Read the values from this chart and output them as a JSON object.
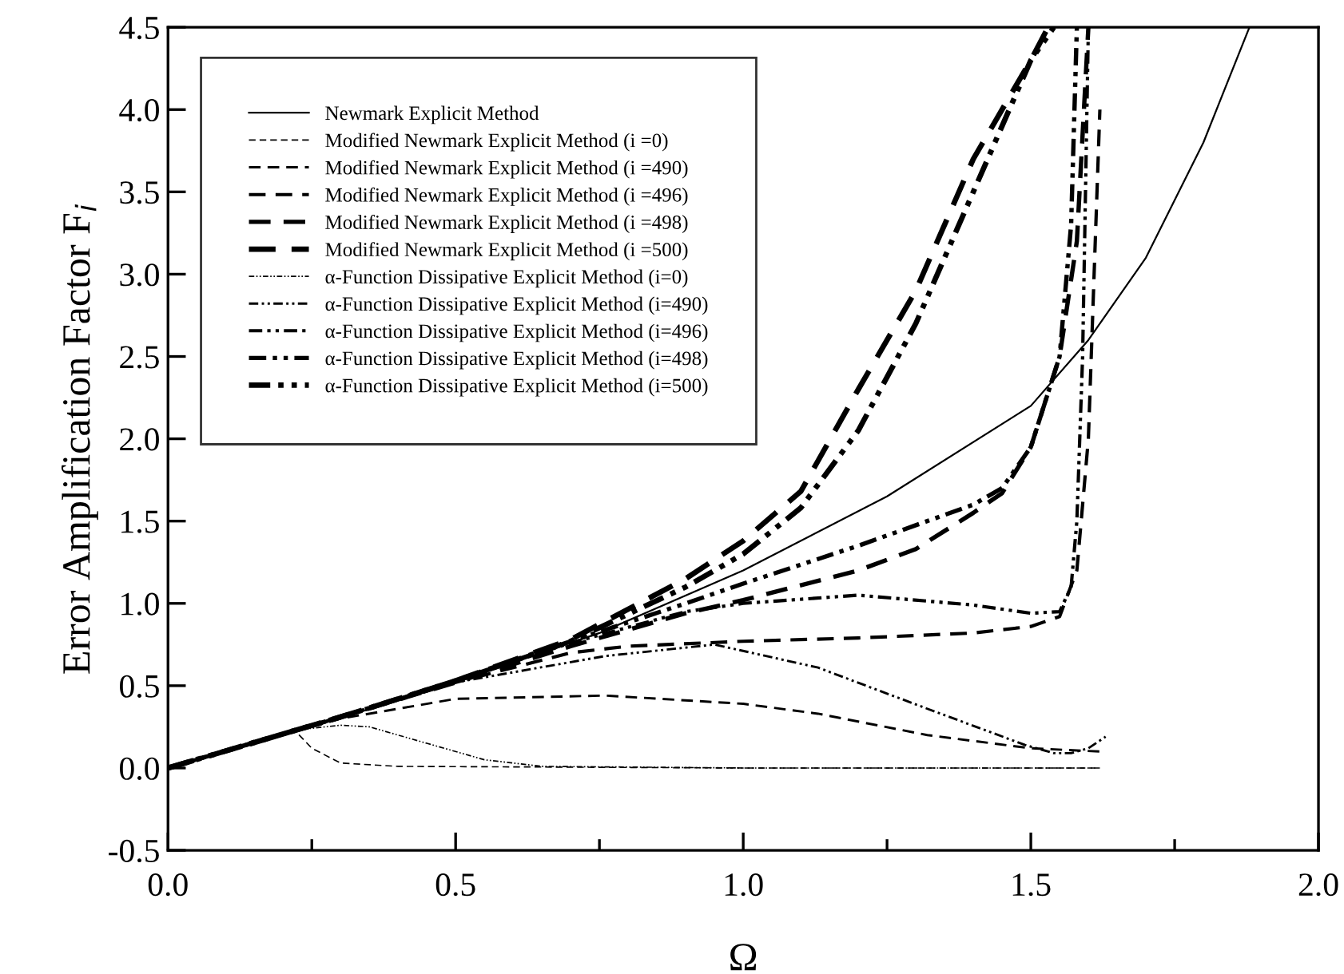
{
  "chart_data": {
    "type": "line",
    "xlabel": "Ω",
    "ylabel": "Error Amplification Factor F$_{i}$",
    "xlim": [
      0,
      2.0
    ],
    "ylim": [
      -0.5,
      4.5
    ],
    "xticks": [
      {
        "value": 0,
        "label": "0.0"
      },
      {
        "value": 0.25,
        "label": null
      },
      {
        "value": 0.5,
        "label": "0.5"
      },
      {
        "value": 0.75,
        "label": null
      },
      {
        "value": 1.0,
        "label": "1.0"
      },
      {
        "value": 1.25,
        "label": null
      },
      {
        "value": 1.5,
        "label": "1.5"
      },
      {
        "value": 1.75,
        "label": null
      },
      {
        "value": 2.0,
        "label": "2.0"
      }
    ],
    "yticks": [
      {
        "value": -0.5,
        "label": "-0.5"
      },
      {
        "value": 0,
        "label": "0.0"
      },
      {
        "value": 0.5,
        "label": "0.5"
      },
      {
        "value": 1.0,
        "label": "1.0"
      },
      {
        "value": 1.5,
        "label": "1.5"
      },
      {
        "value": 2.0,
        "label": "2.0"
      },
      {
        "value": 2.5,
        "label": "2.5"
      },
      {
        "value": 3.0,
        "label": "3.0"
      },
      {
        "value": 3.5,
        "label": "3.5"
      },
      {
        "value": 4.0,
        "label": "4.0"
      },
      {
        "value": 4.5,
        "label": "4.5"
      }
    ],
    "grid": false,
    "legend": "top left",
    "marker": "none",
    "series": [
      {
        "name": "Newmark Explicit Method",
        "color": "#000000",
        "line_style": "solid",
        "x": [
          0,
          0.25,
          0.5,
          0.75,
          1.0,
          1.25,
          1.5,
          1.6,
          1.7,
          1.8,
          1.88
        ],
        "values": [
          0,
          0.25,
          0.52,
          0.82,
          1.2,
          1.65,
          2.2,
          2.6,
          3.1,
          3.8,
          4.5
        ]
      },
      {
        "name": "Modified Newmark Explicit Method (i =0)",
        "color": "#000000",
        "line_style": "dashed",
        "x": [
          0,
          0.22,
          0.25,
          0.3,
          0.4,
          1.0,
          1.62
        ],
        "values": [
          0,
          0.23,
          0.12,
          0.03,
          0.01,
          0,
          0
        ]
      },
      {
        "name": "Modified Newmark Explicit Method (i =490)",
        "color": "#000000",
        "line_style": "dashed",
        "x": [
          0,
          0.3,
          0.5,
          0.76,
          1.0,
          1.13,
          1.32,
          1.5,
          1.62
        ],
        "values": [
          0,
          0.3,
          0.42,
          0.44,
          0.39,
          0.33,
          0.2,
          0.12,
          0.1
        ]
      },
      {
        "name": "Modified Newmark Explicit Method (i =496)",
        "color": "#000000",
        "line_style": "dashed",
        "x": [
          0,
          0.3,
          0.5,
          0.7,
          0.8,
          1.0,
          1.2,
          1.4,
          1.5,
          1.55,
          1.58,
          1.6,
          1.61,
          1.62
        ],
        "values": [
          0,
          0.31,
          0.52,
          0.7,
          0.74,
          0.77,
          0.79,
          0.82,
          0.86,
          0.92,
          1.2,
          2.0,
          3.0,
          4.0
        ]
      },
      {
        "name": "Modified Newmark Explicit Method (i =498)",
        "color": "#000000",
        "line_style": "dashed",
        "x": [
          0,
          0.3,
          0.5,
          0.7,
          0.9,
          1.0,
          1.2,
          1.3,
          1.4,
          1.45,
          1.5,
          1.55,
          1.58,
          1.6
        ],
        "values": [
          0,
          0.31,
          0.52,
          0.74,
          0.94,
          1.02,
          1.2,
          1.33,
          1.55,
          1.67,
          1.95,
          2.5,
          3.2,
          4.5
        ]
      },
      {
        "name": "Modified Newmark Explicit Method (i =500)",
        "color": "#000000",
        "line_style": "dashed",
        "x": [
          0,
          0.3,
          0.5,
          0.7,
          0.9,
          1.0,
          1.1,
          1.2,
          1.3,
          1.4,
          1.5,
          1.53
        ],
        "values": [
          0,
          0.31,
          0.53,
          0.78,
          1.15,
          1.38,
          1.68,
          2.3,
          2.9,
          3.7,
          4.3,
          4.5
        ]
      },
      {
        "name": "α-Function Dissipative Explicit Method (i=0)",
        "color": "#000000",
        "line_style": "dotted",
        "x": [
          0,
          0.22,
          0.3,
          0.35,
          0.45,
          0.55,
          0.65,
          1.0,
          1.62
        ],
        "values": [
          0,
          0.23,
          0.26,
          0.25,
          0.15,
          0.05,
          0.01,
          0,
          0
        ]
      },
      {
        "name": "α-Function Dissipative Explicit Method (i=490)",
        "color": "#000000",
        "line_style": "dotted",
        "x": [
          0,
          0.3,
          0.5,
          0.76,
          0.95,
          1.13,
          1.32,
          1.49,
          1.54,
          1.57,
          1.6,
          1.63
        ],
        "values": [
          0,
          0.31,
          0.52,
          0.68,
          0.75,
          0.61,
          0.36,
          0.14,
          0.09,
          0.09,
          0.12,
          0.19
        ]
      },
      {
        "name": "α-Function Dissipative Explicit Method (i=496)",
        "color": "#000000",
        "line_style": "dotted",
        "x": [
          0,
          0.3,
          0.5,
          0.7,
          0.9,
          1.0,
          1.2,
          1.4,
          1.5,
          1.55,
          1.57,
          1.58,
          1.59,
          1.6
        ],
        "values": [
          0,
          0.31,
          0.53,
          0.76,
          0.95,
          1.0,
          1.05,
          0.99,
          0.94,
          0.95,
          1.1,
          1.5,
          2.5,
          4.5
        ]
      },
      {
        "name": "α-Function Dissipative Explicit Method (i=498)",
        "color": "#000000",
        "line_style": "dotted",
        "x": [
          0,
          0.3,
          0.5,
          0.7,
          0.9,
          1.0,
          1.2,
          1.4,
          1.45,
          1.5,
          1.55,
          1.57,
          1.58
        ],
        "values": [
          0,
          0.31,
          0.53,
          0.77,
          1.0,
          1.12,
          1.35,
          1.6,
          1.7,
          1.95,
          2.5,
          3.3,
          4.5
        ]
      },
      {
        "name": "α-Function Dissipative Explicit Method (i=500)",
        "color": "#000000",
        "line_style": "dotted",
        "x": [
          0,
          0.3,
          0.5,
          0.7,
          0.9,
          1.0,
          1.1,
          1.2,
          1.3,
          1.4,
          1.5,
          1.54
        ],
        "values": [
          0,
          0.31,
          0.53,
          0.77,
          1.1,
          1.3,
          1.58,
          2.05,
          2.7,
          3.5,
          4.3,
          4.5
        ]
      }
    ]
  }
}
